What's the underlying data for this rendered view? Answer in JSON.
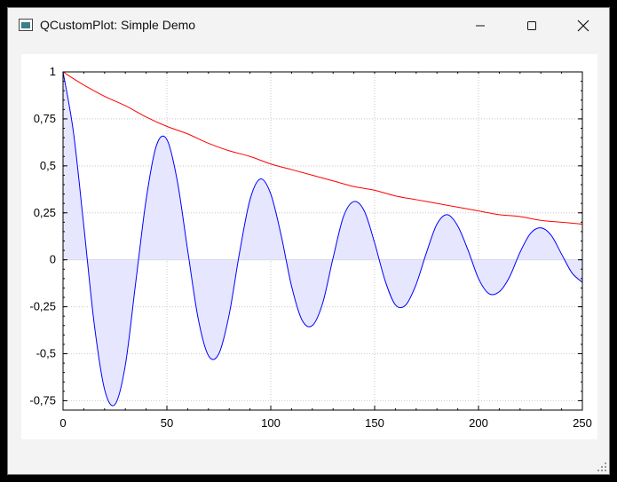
{
  "window": {
    "title": "QCustomPlot: Simple Demo",
    "icon": "app-window-icon",
    "controls": [
      "minimize-icon",
      "maximize-icon",
      "close-icon"
    ]
  },
  "chart_data": {
    "type": "line",
    "title": "",
    "xlabel": "",
    "ylabel": "",
    "xlim": [
      0,
      250
    ],
    "ylim": [
      -0.8,
      1
    ],
    "grid": true,
    "x_ticks": [
      0,
      50,
      100,
      150,
      200,
      250
    ],
    "x_tick_labels": [
      "0",
      "50",
      "100",
      "150",
      "200",
      "250"
    ],
    "y_ticks": [
      -0.75,
      -0.5,
      -0.25,
      0,
      0.25,
      0.5,
      0.75,
      1
    ],
    "y_tick_labels": [
      "-0,75",
      "-0,5",
      "-0,25",
      "0",
      "0,25",
      "0,5",
      "0,75",
      "1"
    ],
    "series": [
      {
        "color": "#0000ff",
        "fill": "#e6e6ff",
        "x": [
          0,
          5,
          10,
          15,
          20,
          25,
          30,
          35,
          40,
          45,
          50,
          55,
          60,
          65,
          70,
          75,
          80,
          85,
          90,
          95,
          100,
          105,
          110,
          115,
          120,
          125,
          130,
          135,
          140,
          145,
          150,
          155,
          160,
          165,
          170,
          175,
          180,
          185,
          190,
          195,
          200,
          205,
          210,
          215,
          220,
          225,
          230,
          235,
          240,
          245,
          250
        ],
        "values": [
          1,
          0.68,
          0.18,
          -0.34,
          -0.69,
          -0.77,
          -0.56,
          -0.12,
          0.32,
          0.61,
          0.64,
          0.42,
          0.05,
          -0.31,
          -0.51,
          -0.5,
          -0.29,
          0.04,
          0.32,
          0.43,
          0.35,
          0.13,
          -0.14,
          -0.32,
          -0.35,
          -0.23,
          0.01,
          0.23,
          0.31,
          0.26,
          0.09,
          -0.11,
          -0.24,
          -0.24,
          -0.13,
          0.04,
          0.19,
          0.24,
          0.18,
          0.05,
          -0.1,
          -0.18,
          -0.17,
          -0.09,
          0.04,
          0.14,
          0.17,
          0.13,
          0.03,
          -0.07,
          -0.12
        ]
      },
      {
        "color": "#ff0000",
        "x": [
          0,
          10,
          20,
          30,
          40,
          50,
          60,
          70,
          80,
          90,
          100,
          110,
          120,
          130,
          140,
          150,
          160,
          170,
          180,
          190,
          200,
          210,
          220,
          230,
          240,
          250
        ],
        "values": [
          1,
          0.93,
          0.87,
          0.82,
          0.76,
          0.71,
          0.67,
          0.62,
          0.58,
          0.55,
          0.51,
          0.48,
          0.45,
          0.42,
          0.39,
          0.37,
          0.34,
          0.32,
          0.3,
          0.28,
          0.26,
          0.24,
          0.23,
          0.21,
          0.2,
          0.19
        ]
      }
    ]
  }
}
